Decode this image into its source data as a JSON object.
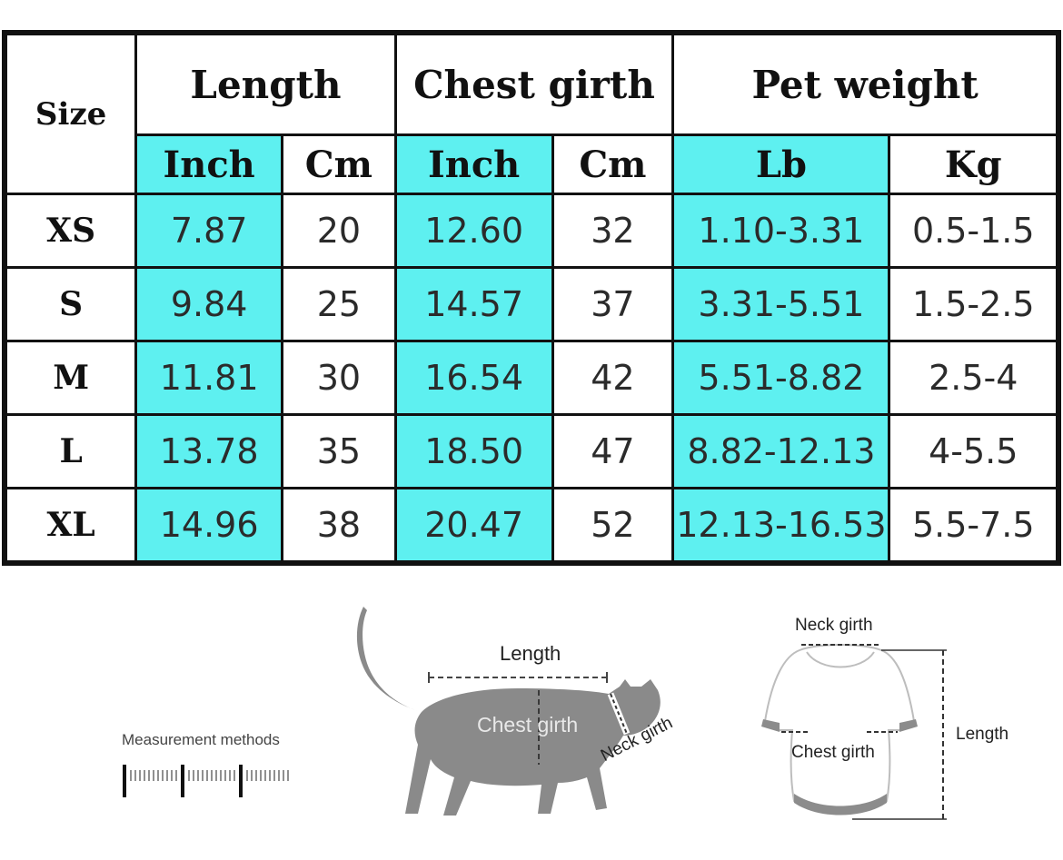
{
  "table": {
    "corner": "Size",
    "groups": [
      "Length",
      "Chest girth",
      "Pet weight"
    ],
    "units": [
      "Inch",
      "Cm",
      "Inch",
      "Cm",
      "Lb",
      "Kg"
    ],
    "rows": [
      {
        "size": "XS",
        "values": [
          "7.87",
          "20",
          "12.60",
          "32",
          "1.10-3.31",
          "0.5-1.5"
        ]
      },
      {
        "size": "S",
        "values": [
          "9.84",
          "25",
          "14.57",
          "37",
          "3.31-5.51",
          "1.5-2.5"
        ]
      },
      {
        "size": "M",
        "values": [
          "11.81",
          "30",
          "16.54",
          "42",
          "5.51-8.82",
          "2.5-4"
        ]
      },
      {
        "size": "L",
        "values": [
          "13.78",
          "35",
          "18.50",
          "47",
          "8.82-12.13",
          "4-5.5"
        ]
      },
      {
        "size": "XL",
        "values": [
          "14.96",
          "38",
          "20.47",
          "52",
          "12.13-16.53",
          "5.5-7.5"
        ]
      }
    ],
    "highlight_color": "#5ef0f0"
  },
  "measure": {
    "title": "Measurement methods",
    "cat": {
      "length": "Length",
      "chest": "Chest girth",
      "neck": "Neck girth"
    },
    "shirt": {
      "neck": "Neck girth",
      "chest": "Chest girth",
      "length": "Length"
    }
  }
}
